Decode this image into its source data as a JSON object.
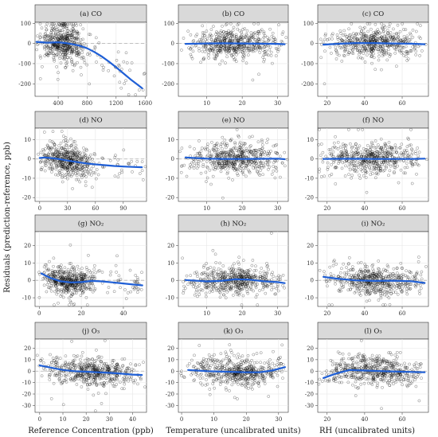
{
  "figure": {
    "ylabel": "Residuals (prediction-reference, ppb)",
    "xlabels": [
      "Reference Concentration (ppb)",
      "Temperature (uncalibrated units)",
      "RH (uncalibrated units)"
    ]
  },
  "chart_data": [
    {
      "panel": "a",
      "title": "(a) CO",
      "type": "scatter",
      "xlim": [
        80,
        1620
      ],
      "ylim": [
        -262,
        105
      ],
      "xticks": [
        400,
        800,
        1200,
        1600
      ],
      "yticks": [
        100,
        0,
        -100,
        -200
      ],
      "cloud": {
        "x_range": [
          120,
          800
        ],
        "y_spread": 45,
        "n": 520
      },
      "smooth": {
        "x": [
          100,
          250,
          400,
          500,
          600,
          700,
          800,
          900,
          1000,
          1100,
          1200,
          1300,
          1400,
          1500,
          1560
        ],
        "y": [
          8,
          4,
          6,
          2,
          -4,
          -12,
          -24,
          -42,
          -64,
          -90,
          -118,
          -148,
          -178,
          -205,
          -222
        ]
      }
    },
    {
      "panel": "b",
      "title": "(b) CO",
      "type": "scatter",
      "xlim": [
        2,
        33
      ],
      "ylim": [
        -262,
        105
      ],
      "xticks": [
        10,
        20,
        30
      ],
      "yticks": [
        100,
        0,
        -100,
        -200
      ],
      "cloud": {
        "x_range": [
          4,
          32
        ],
        "y_spread": 35,
        "n": 520
      },
      "smooth": {
        "x": [
          4,
          10,
          15,
          20,
          25,
          30,
          32
        ],
        "y": [
          -2,
          0,
          1,
          0,
          -1,
          -2,
          -4
        ]
      }
    },
    {
      "panel": "c",
      "title": "(c) CO",
      "type": "scatter",
      "xlim": [
        15,
        74
      ],
      "ylim": [
        -262,
        105
      ],
      "xticks": [
        20,
        40,
        60
      ],
      "yticks": [
        100,
        0,
        -100,
        -200
      ],
      "cloud": {
        "x_range": [
          18,
          72
        ],
        "y_spread": 35,
        "n": 520
      },
      "smooth": {
        "x": [
          18,
          25,
          35,
          45,
          55,
          65,
          72
        ],
        "y": [
          -6,
          -2,
          2,
          2,
          0,
          -1,
          -4
        ]
      }
    },
    {
      "panel": "d",
      "title": "(d) NO",
      "type": "scatter",
      "xlim": [
        -5,
        115
      ],
      "ylim": [
        -22,
        16
      ],
      "xticks": [
        0,
        30,
        60,
        90
      ],
      "yticks": [
        10,
        0,
        -10,
        -20
      ],
      "cloud": {
        "x_range": [
          0,
          60
        ],
        "y_spread": 4,
        "n": 520
      },
      "smooth": {
        "x": [
          0,
          5,
          10,
          20,
          30,
          40,
          50,
          60,
          70,
          80,
          90,
          100,
          110
        ],
        "y": [
          0.5,
          0.8,
          0.6,
          0.0,
          -0.8,
          -1.6,
          -2.3,
          -2.8,
          -3.2,
          -3.6,
          -3.9,
          -4.1,
          -4.3
        ]
      }
    },
    {
      "panel": "e",
      "title": "(e) NO",
      "type": "scatter",
      "xlim": [
        2,
        33
      ],
      "ylim": [
        -22,
        16
      ],
      "xticks": [
        10,
        20,
        30
      ],
      "yticks": [
        10,
        0,
        -10,
        -20
      ],
      "cloud": {
        "x_range": [
          4,
          32
        ],
        "y_spread": 4,
        "n": 520
      },
      "smooth": {
        "x": [
          4,
          10,
          15,
          20,
          25,
          30,
          32
        ],
        "y": [
          0.8,
          0.2,
          0.0,
          0.0,
          0.1,
          0.2,
          -0.1
        ]
      }
    },
    {
      "panel": "f",
      "title": "(f) NO",
      "type": "scatter",
      "xlim": [
        15,
        74
      ],
      "ylim": [
        -22,
        16
      ],
      "xticks": [
        20,
        40,
        60
      ],
      "yticks": [
        10,
        0,
        -10,
        -20
      ],
      "cloud": {
        "x_range": [
          18,
          72
        ],
        "y_spread": 4,
        "n": 520
      },
      "smooth": {
        "x": [
          18,
          25,
          35,
          45,
          55,
          65,
          72
        ],
        "y": [
          0.0,
          0.1,
          0.1,
          0.0,
          0.0,
          0.0,
          0.2
        ]
      }
    },
    {
      "panel": "g",
      "title": "(g) NO₂",
      "type": "scatter",
      "xlim": [
        -2,
        51
      ],
      "ylim": [
        -15,
        28
      ],
      "xticks": [
        0,
        20,
        40
      ],
      "yticks": [
        20,
        10,
        0,
        -10
      ],
      "cloud": {
        "x_range": [
          1,
          28
        ],
        "y_spread": 4,
        "n": 520
      },
      "smooth": {
        "x": [
          1,
          5,
          10,
          15,
          20,
          25,
          30,
          35,
          40,
          45,
          49
        ],
        "y": [
          4,
          1.5,
          -0.5,
          -1.2,
          -1.0,
          -0.3,
          -0.6,
          -1.2,
          -1.8,
          -2.4,
          -2.9
        ]
      }
    },
    {
      "panel": "h",
      "title": "(h) NO₂",
      "type": "scatter",
      "xlim": [
        2,
        33
      ],
      "ylim": [
        -15,
        28
      ],
      "xticks": [
        10,
        20,
        30
      ],
      "yticks": [
        20,
        10,
        0,
        -10
      ],
      "cloud": {
        "x_range": [
          4,
          32
        ],
        "y_spread": 4,
        "n": 520
      },
      "smooth": {
        "x": [
          4,
          10,
          14,
          18,
          22,
          26,
          30,
          32
        ],
        "y": [
          0.2,
          -0.6,
          -0.3,
          0.6,
          0.4,
          -0.5,
          -1.0,
          -1.6
        ]
      }
    },
    {
      "panel": "i",
      "title": "(i) NO₂",
      "type": "scatter",
      "xlim": [
        15,
        74
      ],
      "ylim": [
        -15,
        28
      ],
      "xticks": [
        20,
        40,
        60
      ],
      "yticks": [
        20,
        10,
        0,
        -10
      ],
      "cloud": {
        "x_range": [
          18,
          72
        ],
        "y_spread": 4,
        "n": 520
      },
      "smooth": {
        "x": [
          18,
          25,
          35,
          45,
          55,
          65,
          72
        ],
        "y": [
          2.0,
          1.0,
          0.0,
          -0.3,
          -0.2,
          -0.5,
          -1.5
        ]
      }
    },
    {
      "panel": "j",
      "title": "(j) O₃",
      "type": "scatter",
      "xlim": [
        -2,
        46
      ],
      "ylim": [
        -36,
        28
      ],
      "xticks": [
        0,
        10,
        20,
        30,
        40
      ],
      "yticks": [
        20,
        10,
        0,
        -10,
        -20,
        -30
      ],
      "cloud": {
        "x_range": [
          0,
          44
        ],
        "y_spread": 6,
        "n": 520
      },
      "smooth": {
        "x": [
          0,
          5,
          10,
          15,
          20,
          25,
          30,
          35,
          40,
          44
        ],
        "y": [
          5,
          3,
          1,
          0,
          -0.5,
          -1.0,
          -1.5,
          -2.2,
          -3.0,
          -3.4
        ]
      }
    },
    {
      "panel": "k",
      "title": "(k) O₃",
      "type": "scatter",
      "xlim": [
        -1,
        33
      ],
      "ylim": [
        -36,
        28
      ],
      "xticks": [
        0,
        10,
        20,
        30
      ],
      "yticks": [
        20,
        10,
        0,
        -10,
        -20,
        -30
      ],
      "cloud": {
        "x_range": [
          2,
          32
        ],
        "y_spread": 6,
        "n": 520
      },
      "smooth": {
        "x": [
          2,
          8,
          14,
          20,
          24,
          28,
          32
        ],
        "y": [
          1.0,
          0.0,
          -0.5,
          -1.0,
          -1.0,
          0.5,
          3.5
        ]
      }
    },
    {
      "panel": "l",
      "title": "(l) O₃",
      "type": "scatter",
      "xlim": [
        15,
        74
      ],
      "ylim": [
        -36,
        28
      ],
      "xticks": [
        20,
        40,
        60
      ],
      "yticks": [
        20,
        10,
        0,
        -10,
        -20,
        -30
      ],
      "cloud": {
        "x_range": [
          18,
          72
        ],
        "y_spread": 6,
        "n": 520
      },
      "smooth": {
        "x": [
          18,
          25,
          32,
          40,
          50,
          60,
          72
        ],
        "y": [
          -6,
          -2,
          1,
          0.5,
          0,
          -0.5,
          -1
        ]
      }
    }
  ]
}
